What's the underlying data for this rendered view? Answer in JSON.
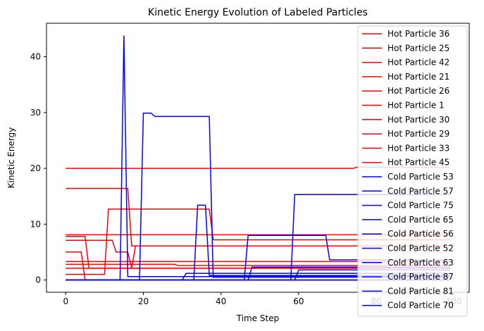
{
  "chart_data": {
    "type": "line",
    "title": "Kinetic Energy Evolution of Labeled Particles",
    "xlabel": "Time Step",
    "ylabel": "Kinetic Energy",
    "xlim": [
      -4.95,
      103.95
    ],
    "ylim": [
      -2.2,
      46.0
    ],
    "xticks": [
      0,
      20,
      40,
      60,
      80,
      100
    ],
    "yticks": [
      0,
      10,
      20,
      30,
      40
    ],
    "grid": false,
    "legend_position": "upper right",
    "colors": {
      "hot": "#ff0000",
      "cold": "#0000ff"
    },
    "series": [
      {
        "name": "Hot Particle 36",
        "group": "hot",
        "x": [
          0,
          74,
          75,
          76,
          99
        ],
        "y": [
          20.0,
          20.0,
          20.2,
          20.2,
          20.2
        ]
      },
      {
        "name": "Hot Particle 25",
        "group": "hot",
        "x": [
          0,
          16,
          17,
          99
        ],
        "y": [
          16.4,
          16.4,
          6.1,
          6.1
        ]
      },
      {
        "name": "Hot Particle 42",
        "group": "hot",
        "x": [
          0,
          10,
          11,
          37,
          38,
          99
        ],
        "y": [
          1.0,
          1.0,
          12.7,
          12.7,
          7.2,
          7.2
        ]
      },
      {
        "name": "Hot Particle 21",
        "group": "hot",
        "x": [
          0,
          99
        ],
        "y": [
          8.1,
          8.1
        ]
      },
      {
        "name": "Hot Particle 26",
        "group": "hot",
        "x": [
          0,
          5,
          6,
          17,
          18,
          99
        ],
        "y": [
          7.8,
          7.8,
          2.1,
          2.1,
          6.1,
          6.1
        ]
      },
      {
        "name": "Hot Particle 1",
        "group": "hot",
        "x": [
          0,
          12,
          13,
          16,
          17,
          99
        ],
        "y": [
          7.1,
          7.1,
          5.0,
          5.0,
          2.1,
          2.1
        ]
      },
      {
        "name": "Hot Particle 30",
        "group": "hot",
        "x": [
          0,
          4,
          5,
          99
        ],
        "y": [
          5.0,
          5.0,
          0.0,
          0.0
        ]
      },
      {
        "name": "Hot Particle 29",
        "group": "hot",
        "x": [
          0,
          52,
          53,
          99
        ],
        "y": [
          3.3,
          3.3,
          3.3,
          3.3
        ]
      },
      {
        "name": "Hot Particle 33",
        "group": "hot",
        "x": [
          0,
          28,
          29,
          99
        ],
        "y": [
          2.8,
          2.8,
          2.6,
          2.6
        ]
      },
      {
        "name": "Hot Particle 45",
        "group": "hot",
        "x": [
          0,
          99
        ],
        "y": [
          2.1,
          2.1
        ]
      },
      {
        "name": "Cold Particle 53",
        "group": "cold",
        "x": [
          0,
          14,
          15,
          16,
          99
        ],
        "y": [
          0.0,
          0.0,
          43.8,
          0.6,
          0.6
        ]
      },
      {
        "name": "Cold Particle 57",
        "group": "cold",
        "x": [
          0,
          19,
          20,
          22,
          23,
          37,
          38,
          99
        ],
        "y": [
          0.0,
          0.0,
          29.9,
          29.9,
          29.3,
          29.3,
          0.5,
          0.5
        ]
      },
      {
        "name": "Cold Particle 75",
        "group": "cold",
        "x": [
          0,
          58,
          59,
          99
        ],
        "y": [
          0.0,
          0.0,
          15.3,
          15.3
        ]
      },
      {
        "name": "Cold Particle 65",
        "group": "cold",
        "x": [
          0,
          33,
          34,
          36,
          37,
          99
        ],
        "y": [
          0.0,
          0.0,
          13.4,
          13.4,
          0.8,
          0.8
        ]
      },
      {
        "name": "Cold Particle 56",
        "group": "cold",
        "x": [
          0,
          46,
          47,
          67,
          68,
          99
        ],
        "y": [
          0.0,
          0.0,
          8.0,
          8.0,
          3.6,
          3.6
        ]
      },
      {
        "name": "Cold Particle 52",
        "group": "cold",
        "x": [
          0,
          47,
          48,
          99
        ],
        "y": [
          0.0,
          0.0,
          2.3,
          2.3
        ]
      },
      {
        "name": "Cold Particle 63",
        "group": "cold",
        "x": [
          0,
          59,
          60,
          99
        ],
        "y": [
          0.0,
          0.0,
          1.8,
          1.8
        ]
      },
      {
        "name": "Cold Particle 87",
        "group": "cold",
        "x": [
          0,
          30,
          31,
          99
        ],
        "y": [
          0.0,
          0.0,
          1.2,
          1.2
        ]
      },
      {
        "name": "Cold Particle 81",
        "group": "cold",
        "x": [
          0,
          99
        ],
        "y": [
          0.0,
          0.0
        ]
      },
      {
        "name": "Cold Particle 70",
        "group": "cold",
        "x": [
          0,
          99
        ],
        "y": [
          0.0,
          0.0
        ]
      }
    ]
  }
}
